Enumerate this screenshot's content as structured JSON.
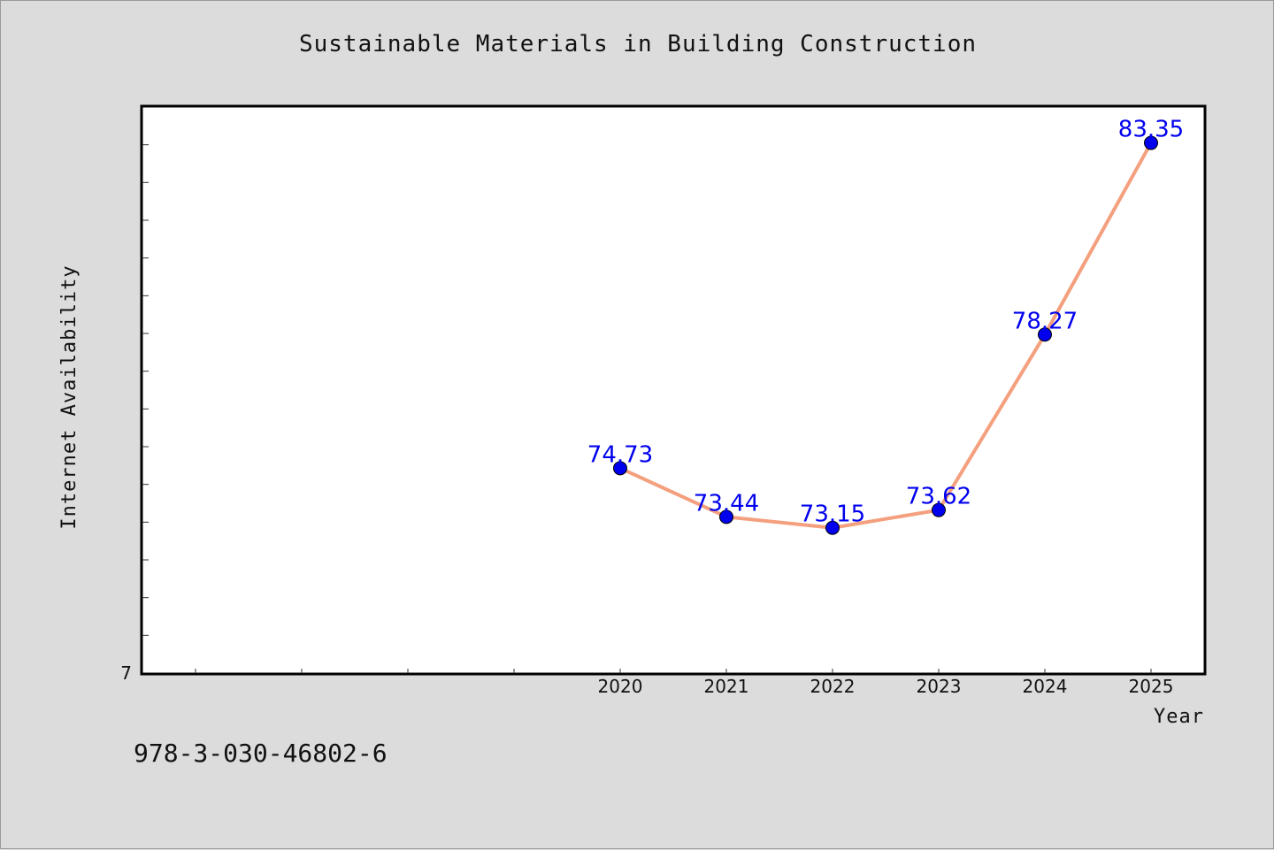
{
  "chart_data": {
    "type": "line",
    "title": "Sustainable Materials in Building Construction",
    "xlabel": "Year",
    "ylabel": "Internet Availability",
    "x": [
      "2020",
      "2021",
      "2022",
      "2023",
      "2024",
      "2025"
    ],
    "values": [
      74.73,
      73.44,
      73.15,
      73.62,
      78.27,
      83.35
    ],
    "data_labels": [
      "74.73",
      "73.44",
      "73.15",
      "73.62",
      "78.27",
      "83.35"
    ],
    "y_tick_labels": [
      "7"
    ],
    "ylim": [
      69.3,
      84.3
    ],
    "line_color": "#f4a07e",
    "marker_color": "#0000ee",
    "label_color": "#0000ee",
    "grid": false
  },
  "footnote": "978-3-030-46802-6"
}
